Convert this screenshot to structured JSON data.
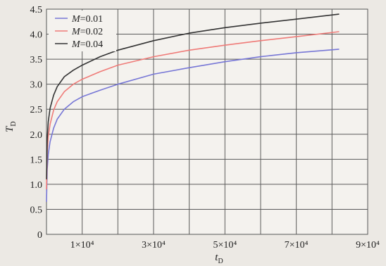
{
  "chart_data": {
    "type": "line",
    "title": "",
    "xlabel": "t",
    "xlabel_sub": "D",
    "ylabel": "T",
    "ylabel_sub": "D",
    "xlim": [
      0,
      90000
    ],
    "ylim": [
      0,
      4.5
    ],
    "grid": true,
    "legend_position": "top-left",
    "y_ticks": [
      {
        "value": 0,
        "label": "0"
      },
      {
        "value": 0.5,
        "label": "0.5"
      },
      {
        "value": 1.0,
        "label": "1.0"
      },
      {
        "value": 1.5,
        "label": "1.5"
      },
      {
        "value": 2.0,
        "label": "2.0"
      },
      {
        "value": 2.5,
        "label": "2.5"
      },
      {
        "value": 3.0,
        "label": "3.0"
      },
      {
        "value": 3.5,
        "label": "3.5"
      },
      {
        "value": 4.0,
        "label": "4.0"
      },
      {
        "value": 4.5,
        "label": "4.5"
      }
    ],
    "x_ticks": [
      {
        "value": 10000,
        "label": "1×10⁴"
      },
      {
        "value": 30000,
        "label": "3×10⁴"
      },
      {
        "value": 50000,
        "label": "5×10⁴"
      },
      {
        "value": 70000,
        "label": "7×10⁴"
      },
      {
        "value": 90000,
        "label": "9×10⁴"
      }
    ],
    "x_minor_grid": [
      20000,
      40000,
      60000,
      80000
    ],
    "series": [
      {
        "name": "M=0.01",
        "legend_var": "M",
        "legend_value": "=0.01",
        "color": "#7777d6",
        "x": [
          0,
          200,
          500,
          1000,
          2000,
          3000,
          5000,
          7500,
          10000,
          15000,
          20000,
          30000,
          40000,
          50000,
          60000,
          70000,
          82000
        ],
        "y": [
          0.65,
          1.3,
          1.6,
          1.85,
          2.12,
          2.3,
          2.5,
          2.65,
          2.75,
          2.88,
          3.0,
          3.2,
          3.33,
          3.45,
          3.55,
          3.63,
          3.7
        ]
      },
      {
        "name": "M=0.02",
        "legend_var": "M",
        "legend_value": "=0.02",
        "color": "#ef7b78",
        "x": [
          0,
          200,
          500,
          1000,
          2000,
          3000,
          5000,
          7500,
          10000,
          15000,
          20000,
          30000,
          40000,
          50000,
          60000,
          70000,
          82000
        ],
        "y": [
          0.9,
          1.65,
          1.95,
          2.2,
          2.48,
          2.65,
          2.85,
          3.0,
          3.1,
          3.25,
          3.38,
          3.55,
          3.68,
          3.78,
          3.87,
          3.95,
          4.05
        ]
      },
      {
        "name": "M=0.04",
        "legend_var": "M",
        "legend_value": "=0.04",
        "color": "#333333",
        "x": [
          0,
          200,
          500,
          1000,
          2000,
          3000,
          5000,
          7500,
          10000,
          15000,
          20000,
          30000,
          40000,
          50000,
          60000,
          70000,
          82000
        ],
        "y": [
          1.1,
          1.9,
          2.25,
          2.52,
          2.78,
          2.95,
          3.15,
          3.28,
          3.38,
          3.55,
          3.68,
          3.87,
          4.02,
          4.13,
          4.22,
          4.3,
          4.4
        ]
      }
    ]
  }
}
